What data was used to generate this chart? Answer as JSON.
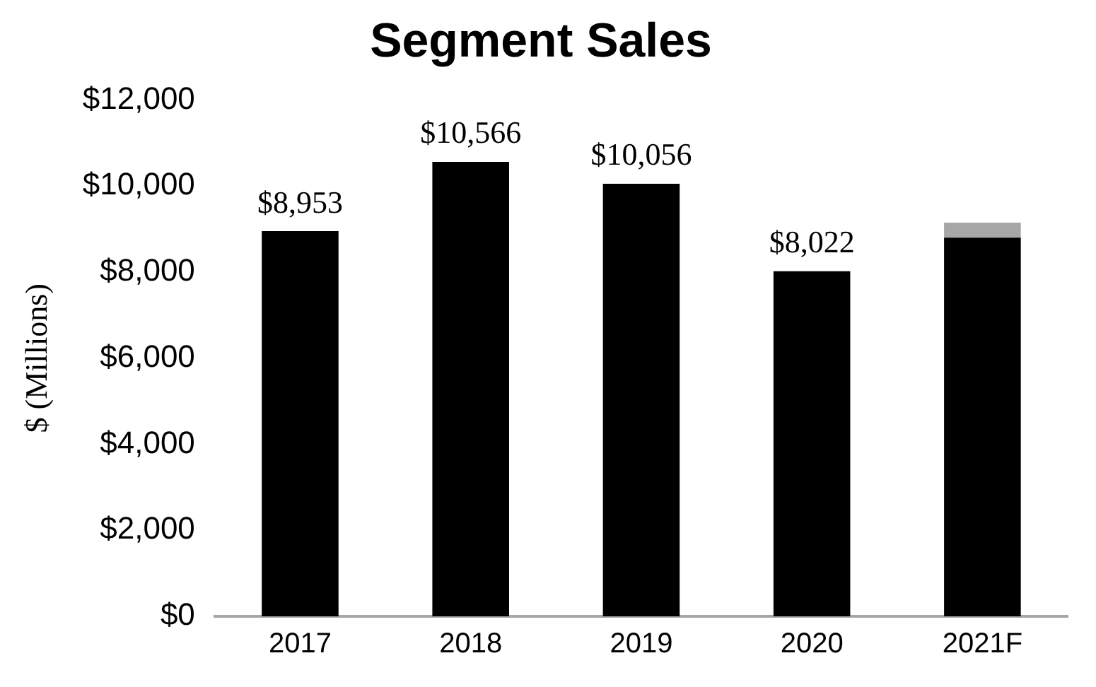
{
  "chart_data": {
    "type": "bar",
    "title": "Segment Sales",
    "ylabel": "$ (Millions)",
    "categories": [
      "2017",
      "2018",
      "2019",
      "2020",
      "2021F"
    ],
    "stacked": true,
    "series": [
      {
        "color": "#000000",
        "values": [
          8953,
          10566,
          10056,
          8022,
          8800
        ],
        "value_labels": [
          "$8,953",
          "$10,566",
          "$10,056",
          "$8,022",
          null
        ]
      },
      {
        "color": "#a6a6a6",
        "values": [
          null,
          null,
          null,
          null,
          350
        ]
      }
    ],
    "ylim": [
      0,
      12000
    ],
    "yticks": [
      {
        "value": 0,
        "label": "$0"
      },
      {
        "value": 2000,
        "label": "$2,000"
      },
      {
        "value": 4000,
        "label": "$4,000"
      },
      {
        "value": 6000,
        "label": "$6,000"
      },
      {
        "value": 8000,
        "label": "$8,000"
      },
      {
        "value": 10000,
        "label": "$10,000"
      },
      {
        "value": 12000,
        "label": "$12,000"
      }
    ],
    "grid": false,
    "legend": false
  }
}
